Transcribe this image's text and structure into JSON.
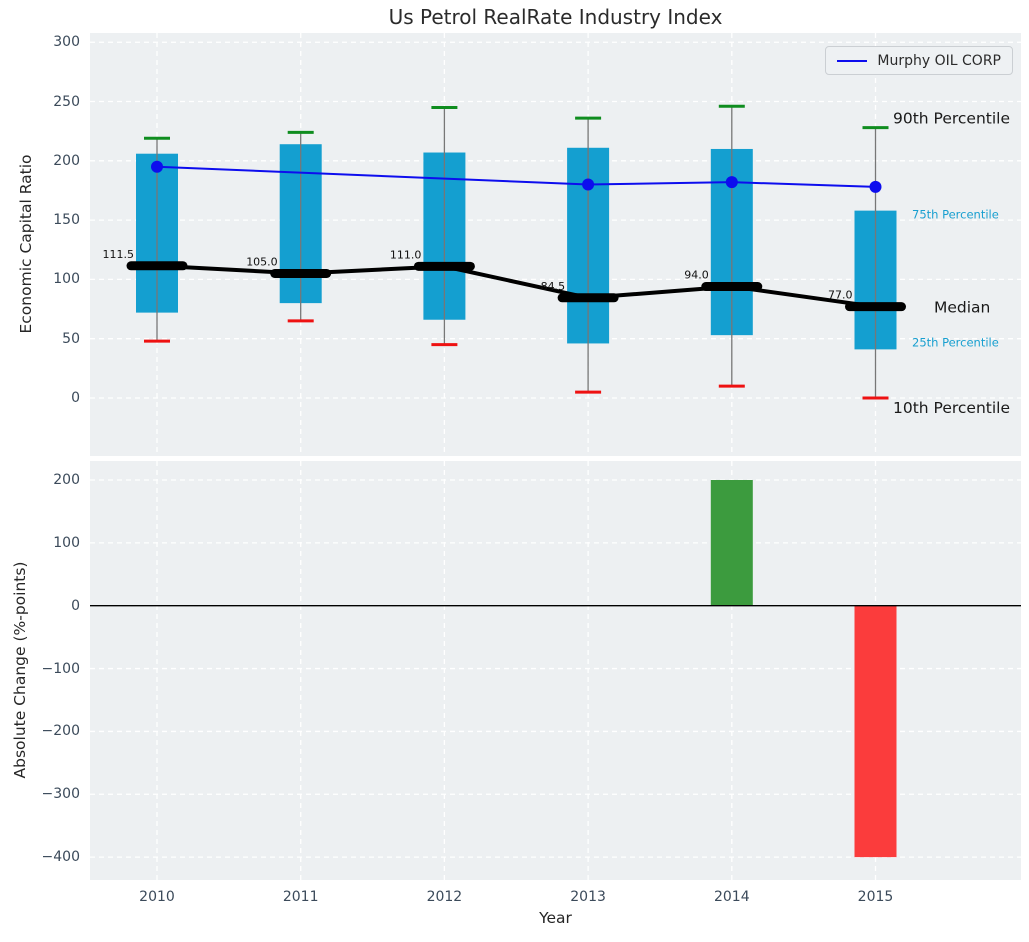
{
  "title": "Us Petrol RealRate Industry Index",
  "legend": {
    "label": "Murphy OIL CORP"
  },
  "colors": {
    "plot_bg": "#edf0f2",
    "grid": "#ffffff",
    "box": "#149fd0",
    "whisker": "#777777",
    "cap_high": "#0f8d1f",
    "cap_low": "#ee1111",
    "median": "#000000",
    "murphy_line": "#0d0dee",
    "bar_positive": "#3c9b3e",
    "bar_negative": "#fb3c3c",
    "zero_line": "#000000",
    "tick_label": "#3b4a5a",
    "annotation_large": "#1a1a1a",
    "annotation_small": "#189fd0"
  },
  "chart_data": [
    {
      "type": "boxplot+line",
      "title": "Us Petrol RealRate Industry Index",
      "ylabel": "Economic Capital Ratio",
      "categories": [
        2010,
        2011,
        2012,
        2013,
        2014,
        2015
      ],
      "yticks": {
        "values": [
          300,
          250,
          200,
          150,
          100,
          50,
          0
        ],
        "labels": [
          "300",
          "250",
          "200",
          "150",
          "100",
          "50",
          "0"
        ]
      },
      "ylim": [
        -49,
        308
      ],
      "grid": true,
      "legend_position": "upper right",
      "series": {
        "p90": {
          "name": "90th Percentile",
          "values": [
            219,
            224,
            245,
            236,
            246,
            228
          ]
        },
        "p75": {
          "name": "75th Percentile",
          "values": [
            206,
            214,
            207,
            211,
            210,
            158
          ]
        },
        "median": {
          "name": "Median",
          "values": [
            111.5,
            105.0,
            111.0,
            84.5,
            94.0,
            77.0
          ]
        },
        "p25": {
          "name": "25th Percentile",
          "values": [
            72,
            80,
            66,
            46,
            53,
            41
          ]
        },
        "p10": {
          "name": "10th Percentile",
          "values": [
            48,
            65,
            45,
            5,
            10,
            0
          ]
        },
        "murphy": {
          "name": "Murphy OIL CORP",
          "x": [
            2010,
            2013,
            2014,
            2015
          ],
          "values": [
            195,
            180,
            182,
            178
          ]
        }
      },
      "median_labels": [
        "111.5",
        "105.0",
        "111.0",
        "84.5",
        "94.0",
        "77.0"
      ],
      "annotations": [
        "90th Percentile",
        "75th Percentile",
        "Median",
        "25th Percentile",
        "10th Percentile"
      ]
    },
    {
      "type": "bar",
      "ylabel": "Absolute Change (%-points)",
      "xlabel": "Year",
      "categories": [
        2010,
        2011,
        2012,
        2013,
        2014,
        2015
      ],
      "values": [
        null,
        null,
        null,
        null,
        200,
        -400
      ],
      "yticks": {
        "values": [
          200,
          100,
          0,
          -100,
          -200,
          -300,
          -400
        ],
        "labels": [
          "200",
          "100",
          "0",
          "−100",
          "−200",
          "−300",
          "−400"
        ]
      },
      "ylim": [
        -436,
        230
      ],
      "grid": true,
      "zero_line": 0
    }
  ]
}
